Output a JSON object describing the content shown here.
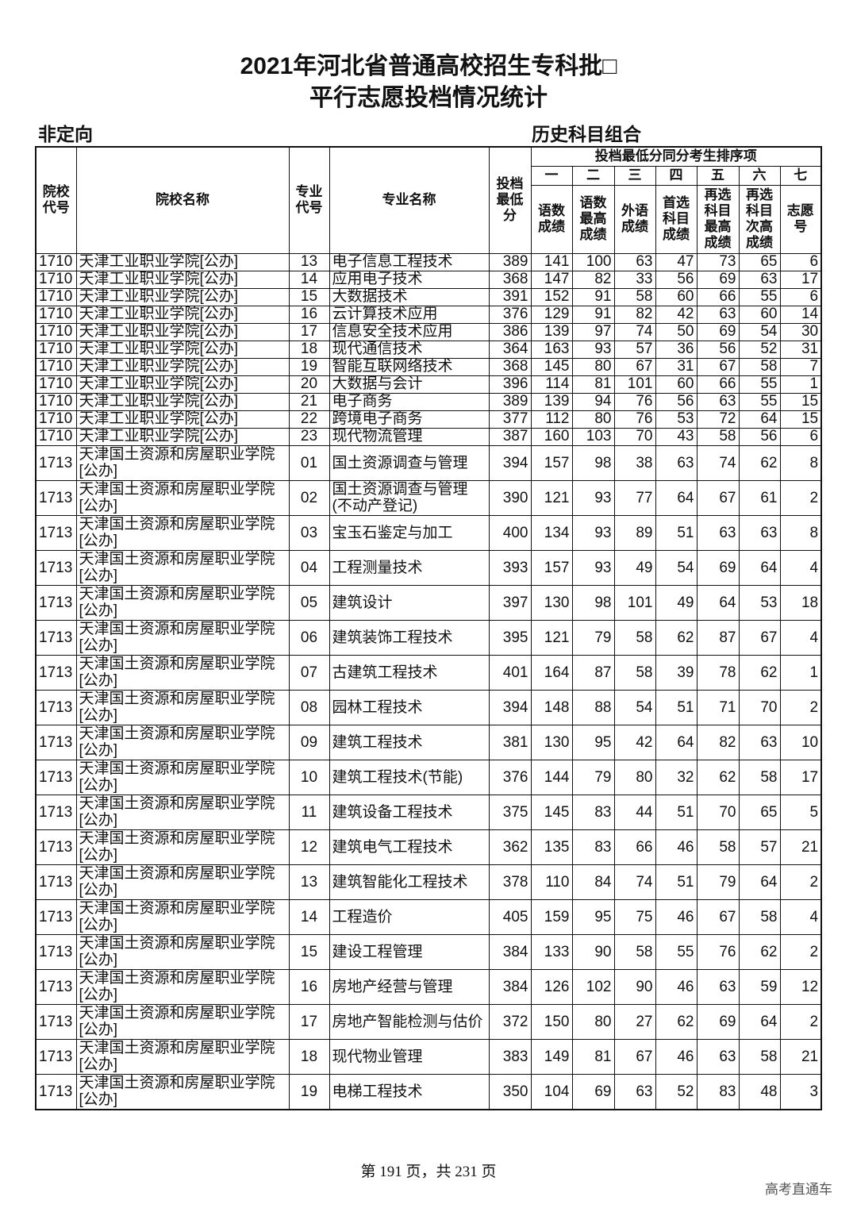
{
  "title_line1": "2021年河北省普通高校招生专科批□",
  "title_line2": "平行志愿投档情况统计",
  "left_subtitle": "非定向",
  "right_subtitle": "历史科目组合",
  "headers": {
    "school_code": "院校代号",
    "school_name": "院校名称",
    "major_code": "专业代号",
    "major_name": "专业名称",
    "min_score": "投档最低分",
    "tiebreak_group": "投档最低分同分考生排序项",
    "tiebreak_numbers": [
      "一",
      "二",
      "三",
      "四",
      "五",
      "六",
      "七"
    ],
    "tiebreak_labels": [
      "语数成绩",
      "语数最高成绩",
      "外语成绩",
      "首选科目成绩",
      "再选科目最高成绩",
      "再选科目次高成绩",
      "志愿号"
    ]
  },
  "rows": [
    [
      "1710",
      "天津工业职业学院[公办]",
      "13",
      "电子信息工程技术",
      "389",
      "141",
      "100",
      "63",
      "47",
      "73",
      "65",
      "6"
    ],
    [
      "1710",
      "天津工业职业学院[公办]",
      "14",
      "应用电子技术",
      "368",
      "147",
      "82",
      "33",
      "56",
      "69",
      "63",
      "17"
    ],
    [
      "1710",
      "天津工业职业学院[公办]",
      "15",
      "大数据技术",
      "391",
      "152",
      "91",
      "58",
      "60",
      "66",
      "55",
      "6"
    ],
    [
      "1710",
      "天津工业职业学院[公办]",
      "16",
      "云计算技术应用",
      "376",
      "129",
      "91",
      "82",
      "42",
      "63",
      "60",
      "14"
    ],
    [
      "1710",
      "天津工业职业学院[公办]",
      "17",
      "信息安全技术应用",
      "386",
      "139",
      "97",
      "74",
      "50",
      "69",
      "54",
      "30"
    ],
    [
      "1710",
      "天津工业职业学院[公办]",
      "18",
      "现代通信技术",
      "364",
      "163",
      "93",
      "57",
      "36",
      "56",
      "52",
      "31"
    ],
    [
      "1710",
      "天津工业职业学院[公办]",
      "19",
      "智能互联网络技术",
      "368",
      "145",
      "80",
      "67",
      "31",
      "67",
      "58",
      "7"
    ],
    [
      "1710",
      "天津工业职业学院[公办]",
      "20",
      "大数据与会计",
      "396",
      "114",
      "81",
      "101",
      "60",
      "66",
      "55",
      "1"
    ],
    [
      "1710",
      "天津工业职业学院[公办]",
      "21",
      "电子商务",
      "389",
      "139",
      "94",
      "76",
      "56",
      "63",
      "55",
      "15"
    ],
    [
      "1710",
      "天津工业职业学院[公办]",
      "22",
      "跨境电子商务",
      "377",
      "112",
      "80",
      "76",
      "53",
      "72",
      "64",
      "15"
    ],
    [
      "1710",
      "天津工业职业学院[公办]",
      "23",
      "现代物流管理",
      "387",
      "160",
      "103",
      "70",
      "43",
      "58",
      "56",
      "6"
    ],
    [
      "1713",
      "天津国土资源和房屋职业学院[公办]",
      "01",
      "国土资源调查与管理",
      "394",
      "157",
      "98",
      "38",
      "63",
      "74",
      "62",
      "8"
    ],
    [
      "1713",
      "天津国土资源和房屋职业学院[公办]",
      "02",
      "国土资源调查与管理(不动产登记)",
      "390",
      "121",
      "93",
      "77",
      "64",
      "67",
      "61",
      "2"
    ],
    [
      "1713",
      "天津国土资源和房屋职业学院[公办]",
      "03",
      "宝玉石鉴定与加工",
      "400",
      "134",
      "93",
      "89",
      "51",
      "63",
      "63",
      "8"
    ],
    [
      "1713",
      "天津国土资源和房屋职业学院[公办]",
      "04",
      "工程测量技术",
      "393",
      "157",
      "93",
      "49",
      "54",
      "69",
      "64",
      "4"
    ],
    [
      "1713",
      "天津国土资源和房屋职业学院[公办]",
      "05",
      "建筑设计",
      "397",
      "130",
      "98",
      "101",
      "49",
      "64",
      "53",
      "18"
    ],
    [
      "1713",
      "天津国土资源和房屋职业学院[公办]",
      "06",
      "建筑装饰工程技术",
      "395",
      "121",
      "79",
      "58",
      "62",
      "87",
      "67",
      "4"
    ],
    [
      "1713",
      "天津国土资源和房屋职业学院[公办]",
      "07",
      "古建筑工程技术",
      "401",
      "164",
      "87",
      "58",
      "39",
      "78",
      "62",
      "1"
    ],
    [
      "1713",
      "天津国土资源和房屋职业学院[公办]",
      "08",
      "园林工程技术",
      "394",
      "148",
      "88",
      "54",
      "51",
      "71",
      "70",
      "2"
    ],
    [
      "1713",
      "天津国土资源和房屋职业学院[公办]",
      "09",
      "建筑工程技术",
      "381",
      "130",
      "95",
      "42",
      "64",
      "82",
      "63",
      "10"
    ],
    [
      "1713",
      "天津国土资源和房屋职业学院[公办]",
      "10",
      "建筑工程技术(节能)",
      "376",
      "144",
      "79",
      "80",
      "32",
      "62",
      "58",
      "17"
    ],
    [
      "1713",
      "天津国土资源和房屋职业学院[公办]",
      "11",
      "建筑设备工程技术",
      "375",
      "145",
      "83",
      "44",
      "51",
      "70",
      "65",
      "5"
    ],
    [
      "1713",
      "天津国土资源和房屋职业学院[公办]",
      "12",
      "建筑电气工程技术",
      "362",
      "135",
      "83",
      "66",
      "46",
      "58",
      "57",
      "21"
    ],
    [
      "1713",
      "天津国土资源和房屋职业学院[公办]",
      "13",
      "建筑智能化工程技术",
      "378",
      "110",
      "84",
      "74",
      "51",
      "79",
      "64",
      "2"
    ],
    [
      "1713",
      "天津国土资源和房屋职业学院[公办]",
      "14",
      "工程造价",
      "405",
      "159",
      "95",
      "75",
      "46",
      "67",
      "58",
      "4"
    ],
    [
      "1713",
      "天津国土资源和房屋职业学院[公办]",
      "15",
      "建设工程管理",
      "384",
      "133",
      "90",
      "58",
      "55",
      "76",
      "62",
      "2"
    ],
    [
      "1713",
      "天津国土资源和房屋职业学院[公办]",
      "16",
      "房地产经营与管理",
      "384",
      "126",
      "102",
      "90",
      "46",
      "63",
      "59",
      "12"
    ],
    [
      "1713",
      "天津国土资源和房屋职业学院[公办]",
      "17",
      "房地产智能检测与估价",
      "372",
      "150",
      "80",
      "27",
      "62",
      "69",
      "64",
      "2"
    ],
    [
      "1713",
      "天津国土资源和房屋职业学院[公办]",
      "18",
      "现代物业管理",
      "383",
      "149",
      "81",
      "67",
      "46",
      "63",
      "58",
      "21"
    ],
    [
      "1713",
      "天津国土资源和房屋职业学院[公办]",
      "19",
      "电梯工程技术",
      "350",
      "104",
      "69",
      "63",
      "52",
      "83",
      "48",
      "3"
    ]
  ],
  "footer": "第 191 页，共 231 页",
  "watermark": "高考直通车"
}
